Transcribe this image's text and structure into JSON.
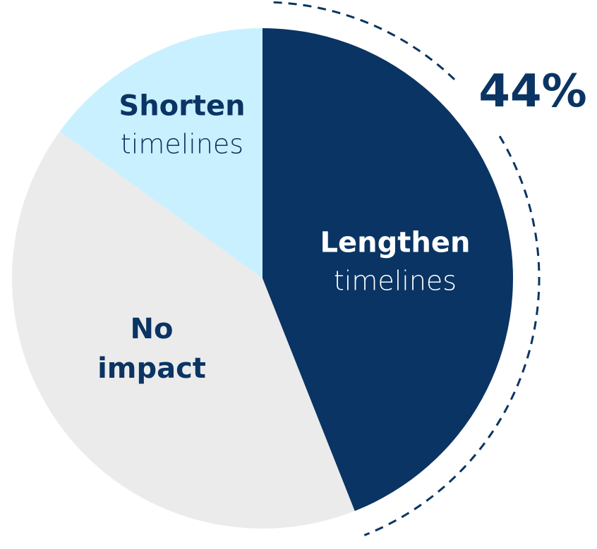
{
  "chart_data": {
    "type": "pie",
    "labels": [
      {
        "bold": "Lengthen",
        "light": "timelines"
      },
      {
        "bold": "No impact"
      },
      {
        "bold": "Shorten",
        "light": "timelines"
      }
    ],
    "values": [
      44,
      41,
      15
    ],
    "value_labels": [
      "44%",
      null,
      null
    ],
    "colors": [
      "#0a3463",
      "#ebebeb",
      "#c9f0ff"
    ],
    "highlight": 0
  }
}
